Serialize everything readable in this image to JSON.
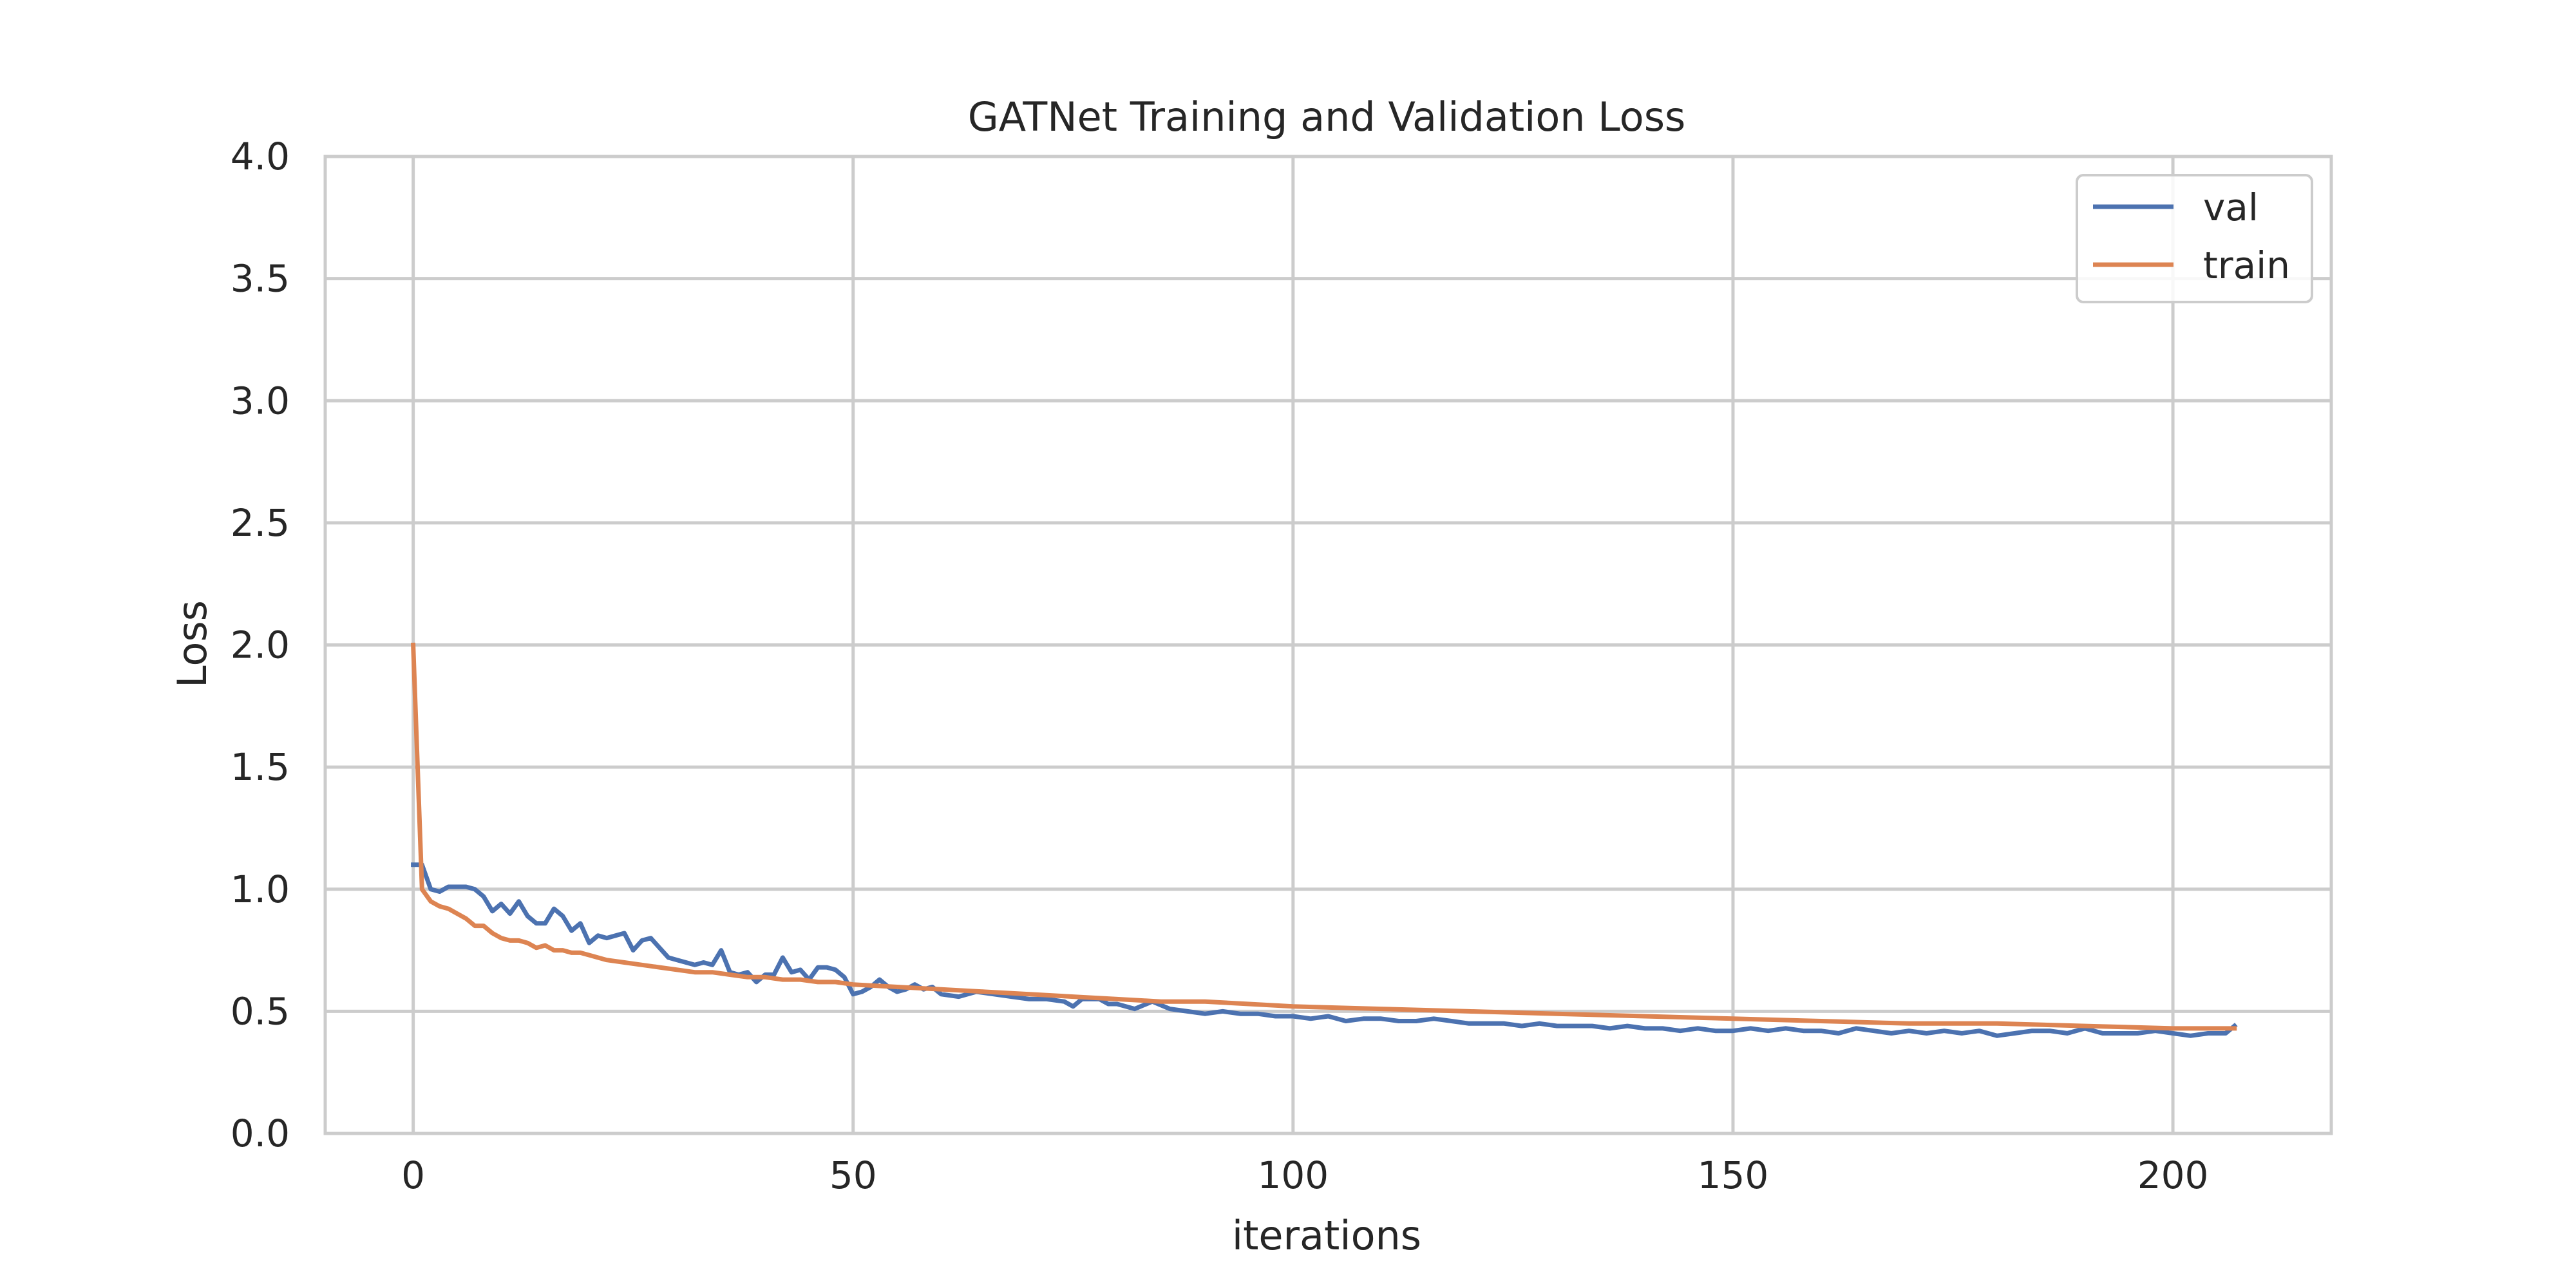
{
  "chart_data": {
    "type": "line",
    "title": "GATNet Training and Validation Loss",
    "xlabel": "iterations",
    "ylabel": "Loss",
    "xlim": [
      -10,
      218
    ],
    "ylim": [
      0.0,
      4.0
    ],
    "xticks": [
      0,
      50,
      100,
      150,
      200
    ],
    "xtick_labels": [
      "0",
      "50",
      "100",
      "150",
      "200"
    ],
    "yticks": [
      0.0,
      0.5,
      1.0,
      1.5,
      2.0,
      2.5,
      3.0,
      3.5,
      4.0
    ],
    "ytick_labels": [
      "0.0",
      "0.5",
      "1.0",
      "1.5",
      "2.0",
      "2.5",
      "3.0",
      "3.5",
      "4.0"
    ],
    "grid": true,
    "legend_position": "top-right",
    "series": [
      {
        "name": "val",
        "color": "#4c72b0",
        "x": [
          0,
          1,
          2,
          3,
          4,
          5,
          6,
          7,
          8,
          9,
          10,
          11,
          12,
          13,
          14,
          15,
          16,
          17,
          18,
          19,
          20,
          21,
          22,
          23,
          24,
          25,
          26,
          27,
          28,
          29,
          30,
          31,
          32,
          33,
          34,
          35,
          36,
          37,
          38,
          39,
          40,
          41,
          42,
          43,
          44,
          45,
          46,
          47,
          48,
          49,
          50,
          51,
          52,
          53,
          54,
          55,
          56,
          57,
          58,
          59,
          60,
          62,
          64,
          66,
          68,
          70,
          72,
          74,
          75,
          76,
          78,
          79,
          80,
          82,
          84,
          86,
          88,
          90,
          92,
          94,
          96,
          98,
          100,
          102,
          104,
          106,
          108,
          110,
          112,
          114,
          116,
          118,
          120,
          122,
          124,
          126,
          128,
          130,
          132,
          134,
          136,
          138,
          140,
          142,
          144,
          146,
          148,
          150,
          152,
          154,
          156,
          158,
          160,
          162,
          164,
          166,
          168,
          170,
          172,
          174,
          176,
          178,
          180,
          182,
          184,
          186,
          188,
          190,
          192,
          194,
          196,
          198,
          200,
          202,
          204,
          206,
          207
        ],
        "y": [
          1.1,
          1.1,
          1.0,
          0.99,
          1.01,
          1.01,
          1.01,
          1.0,
          0.97,
          0.91,
          0.94,
          0.9,
          0.95,
          0.89,
          0.86,
          0.86,
          0.92,
          0.89,
          0.83,
          0.86,
          0.78,
          0.81,
          0.8,
          0.81,
          0.82,
          0.75,
          0.79,
          0.8,
          0.76,
          0.72,
          0.71,
          0.7,
          0.69,
          0.7,
          0.69,
          0.75,
          0.66,
          0.65,
          0.66,
          0.62,
          0.65,
          0.65,
          0.72,
          0.66,
          0.67,
          0.63,
          0.68,
          0.68,
          0.67,
          0.64,
          0.57,
          0.58,
          0.6,
          0.63,
          0.6,
          0.58,
          0.59,
          0.61,
          0.59,
          0.6,
          0.57,
          0.56,
          0.58,
          0.57,
          0.56,
          0.55,
          0.55,
          0.54,
          0.52,
          0.55,
          0.55,
          0.53,
          0.53,
          0.51,
          0.54,
          0.51,
          0.5,
          0.49,
          0.5,
          0.49,
          0.49,
          0.48,
          0.48,
          0.47,
          0.48,
          0.46,
          0.47,
          0.47,
          0.46,
          0.46,
          0.47,
          0.46,
          0.45,
          0.45,
          0.45,
          0.44,
          0.45,
          0.44,
          0.44,
          0.44,
          0.43,
          0.44,
          0.43,
          0.43,
          0.42,
          0.43,
          0.42,
          0.42,
          0.43,
          0.42,
          0.43,
          0.42,
          0.42,
          0.41,
          0.43,
          0.42,
          0.41,
          0.42,
          0.41,
          0.42,
          0.41,
          0.42,
          0.4,
          0.41,
          0.42,
          0.42,
          0.41,
          0.43,
          0.41,
          0.41,
          0.41,
          0.42,
          0.41,
          0.4,
          0.41,
          0.41,
          0.44
        ]
      },
      {
        "name": "train",
        "color": "#dd8452",
        "x": [
          0,
          1,
          2,
          3,
          4,
          5,
          6,
          7,
          8,
          9,
          10,
          11,
          12,
          13,
          14,
          15,
          16,
          17,
          18,
          19,
          20,
          22,
          24,
          26,
          28,
          30,
          32,
          34,
          36,
          38,
          40,
          42,
          44,
          46,
          48,
          50,
          55,
          60,
          65,
          70,
          75,
          80,
          85,
          90,
          95,
          100,
          110,
          120,
          130,
          140,
          150,
          160,
          170,
          180,
          190,
          200,
          207
        ],
        "y": [
          2.0,
          1.0,
          0.95,
          0.93,
          0.92,
          0.9,
          0.88,
          0.85,
          0.85,
          0.82,
          0.8,
          0.79,
          0.79,
          0.78,
          0.76,
          0.77,
          0.75,
          0.75,
          0.74,
          0.74,
          0.73,
          0.71,
          0.7,
          0.69,
          0.68,
          0.67,
          0.66,
          0.66,
          0.65,
          0.64,
          0.64,
          0.63,
          0.63,
          0.62,
          0.62,
          0.61,
          0.6,
          0.59,
          0.58,
          0.57,
          0.56,
          0.55,
          0.54,
          0.54,
          0.53,
          0.52,
          0.51,
          0.5,
          0.49,
          0.48,
          0.47,
          0.46,
          0.45,
          0.45,
          0.44,
          0.43,
          0.43
        ]
      }
    ]
  }
}
